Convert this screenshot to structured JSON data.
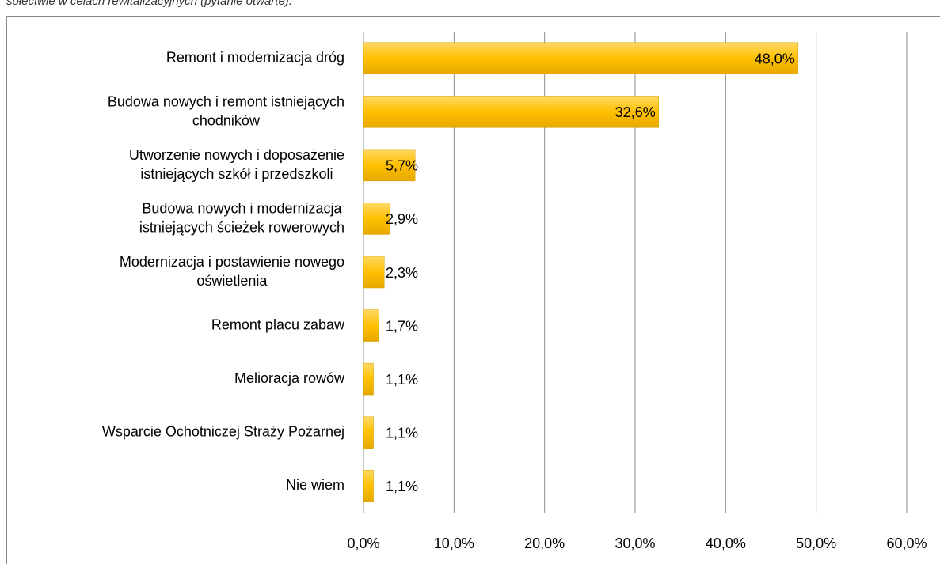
{
  "chart_data": {
    "type": "barh",
    "title": "sołectwie w celach rewitalizacyjnych (pytanie otwarte).",
    "categories": [
      "Remont i modernizacja dróg",
      "Budowa nowych i remont istniejących\nchodników",
      "Utworzenie nowych i doposażenie\nistniejących  szkół i przedszkoli",
      "Budowa nowych i modernizacja\nistniejących ścieżek rowerowych",
      "Modernizacja i postawienie nowego\noświetlenia",
      "Remont placu zabaw",
      "Melioracja rowów",
      "Wsparcie Ochotniczej Straży Pożarnej",
      "Nie wiem"
    ],
    "values": [
      48.0,
      32.6,
      5.7,
      2.9,
      2.3,
      1.7,
      1.1,
      1.1,
      1.1
    ],
    "value_labels": [
      "48,0%",
      "32,6%",
      "5,7%",
      "2,9%",
      "2,3%",
      "1,7%",
      "1,1%",
      "1,1%",
      "1,1%"
    ],
    "color": "#ffc000",
    "xlim": [
      0,
      60
    ],
    "xticks": [
      {
        "value": 0,
        "label": "0,0%"
      },
      {
        "value": 10,
        "label": "10,0%"
      },
      {
        "value": 20,
        "label": "20,0%"
      },
      {
        "value": 30,
        "label": "30,0%"
      },
      {
        "value": 40,
        "label": "40,0%"
      },
      {
        "value": 50,
        "label": "50,0%"
      },
      {
        "value": 60,
        "label": "60,0%"
      }
    ],
    "grid": true
  }
}
